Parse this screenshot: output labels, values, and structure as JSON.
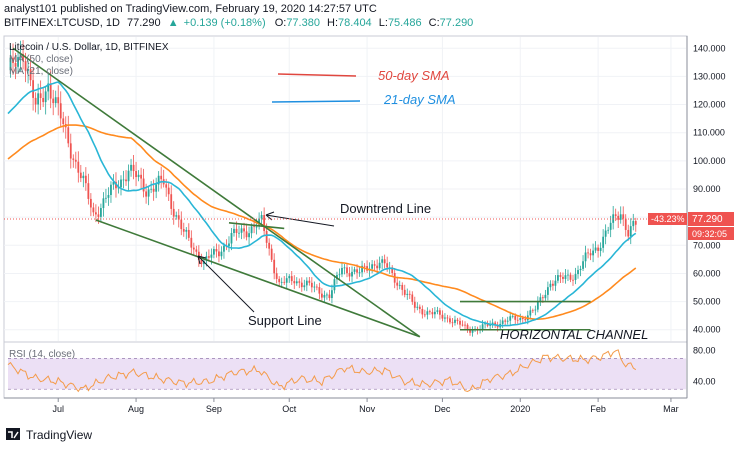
{
  "header": {
    "line1": "analyst101 published on TradingView.com, February 19, 2020 14:27:57 UTC",
    "symbol": "BITFINEX:LTCUSD, 1D",
    "last": "77.290",
    "change": "+0.139 (+0.18%)",
    "ohlc": {
      "O": "77.380",
      "H": "78.404",
      "L": "75.486",
      "C": "77.290"
    }
  },
  "pane_title": "Litecoin / U.S. Dollar, 1D, BITFINEX",
  "indicator_labels": [
    "MA (50, close)",
    "MA (21, close)"
  ],
  "rsi_label": "RSI (14, close)",
  "legend": [
    {
      "label": "50-day SMA",
      "color": "#e0473f"
    },
    {
      "label": "21-day SMA",
      "color": "#1f8fe0"
    }
  ],
  "annotations": {
    "downtrend": "Downtrend Line",
    "support": "Support Line",
    "channel": "HORIZONTAL CHANNEL"
  },
  "price_badges": {
    "pct": "-43.23%",
    "price": "77.290",
    "countdown": "09:32:05"
  },
  "footer": {
    "brand": "TradingView"
  },
  "chart_data": {
    "type": "line",
    "price_axis": {
      "min": 36,
      "max": 144,
      "ticks": [
        40,
        50,
        60,
        70,
        80,
        90,
        100,
        110,
        120,
        130,
        140
      ],
      "tick_labels": [
        "40.000",
        "50.000",
        "60.000",
        "70.000",
        "80.000",
        "90.000",
        "100.000",
        "110.000",
        "120.000",
        "130.000",
        "140.000"
      ]
    },
    "rsi_axis": {
      "min": 20,
      "max": 90,
      "ticks": [
        40,
        80
      ],
      "tick_labels": [
        "40.00",
        "80.00"
      ],
      "band": [
        30,
        70
      ]
    },
    "time_axis": {
      "labels": [
        "Jul",
        "Aug",
        "Sep",
        "Oct",
        "Nov",
        "Dec",
        "2020",
        "Feb",
        "Mar"
      ],
      "days": [
        20,
        51,
        82,
        112,
        143,
        173,
        204,
        235,
        264
      ]
    },
    "colors": {
      "up": "#26a69a",
      "down": "#ef5350",
      "sma50": "#ff8a1e",
      "sma21": "#29b6d6",
      "trend": "#3f7a3a",
      "rsi": "#f49b4a",
      "rsi_band": "#ece0f5"
    },
    "waypoints": [
      {
        "day": 0,
        "price": 130
      },
      {
        "day": 6,
        "price": 140
      },
      {
        "day": 11,
        "price": 118
      },
      {
        "day": 16,
        "price": 128
      },
      {
        "day": 22,
        "price": 112
      },
      {
        "day": 30,
        "price": 92
      },
      {
        "day": 34,
        "price": 81
      },
      {
        "day": 42,
        "price": 90
      },
      {
        "day": 48,
        "price": 97
      },
      {
        "day": 55,
        "price": 90
      },
      {
        "day": 62,
        "price": 92
      },
      {
        "day": 70,
        "price": 74
      },
      {
        "day": 78,
        "price": 64
      },
      {
        "day": 84,
        "price": 68
      },
      {
        "day": 89,
        "price": 73
      },
      {
        "day": 96,
        "price": 76
      },
      {
        "day": 101,
        "price": 78
      },
      {
        "day": 108,
        "price": 56
      },
      {
        "day": 114,
        "price": 58
      },
      {
        "day": 121,
        "price": 55
      },
      {
        "day": 128,
        "price": 52
      },
      {
        "day": 133,
        "price": 62
      },
      {
        "day": 140,
        "price": 60
      },
      {
        "day": 146,
        "price": 64
      },
      {
        "day": 150,
        "price": 63
      },
      {
        "day": 156,
        "price": 56
      },
      {
        "day": 162,
        "price": 48
      },
      {
        "day": 168,
        "price": 46
      },
      {
        "day": 176,
        "price": 44
      },
      {
        "day": 183,
        "price": 40
      },
      {
        "day": 190,
        "price": 41
      },
      {
        "day": 197,
        "price": 43
      },
      {
        "day": 204,
        "price": 44
      },
      {
        "day": 210,
        "price": 47
      },
      {
        "day": 216,
        "price": 57
      },
      {
        "day": 221,
        "price": 58
      },
      {
        "day": 226,
        "price": 60
      },
      {
        "day": 230,
        "price": 65
      },
      {
        "day": 235,
        "price": 70
      },
      {
        "day": 240,
        "price": 77
      },
      {
        "day": 244,
        "price": 82
      },
      {
        "day": 247,
        "price": 75
      },
      {
        "day": 250,
        "price": 77.3
      }
    ],
    "trend_lines": [
      {
        "name": "downtrend",
        "from": {
          "day": 2,
          "price": 140
        },
        "to": {
          "day": 164,
          "price": 37.5
        }
      },
      {
        "name": "support",
        "from": {
          "day": 35,
          "price": 79
        },
        "to": {
          "day": 164,
          "price": 37.5
        }
      },
      {
        "name": "upper-channel-top",
        "from": {
          "day": 88,
          "price": 78
        },
        "to": {
          "day": 110,
          "price": 76
        }
      },
      {
        "name": "channel-top",
        "from": {
          "day": 180,
          "price": 50
        },
        "to": {
          "day": 232,
          "price": 50
        }
      },
      {
        "name": "channel-bottom",
        "from": {
          "day": 180,
          "price": 40
        },
        "to": {
          "day": 232,
          "price": 40
        }
      }
    ],
    "rsi": [
      {
        "day": 0,
        "v": 62
      },
      {
        "day": 10,
        "v": 45
      },
      {
        "day": 20,
        "v": 40
      },
      {
        "day": 30,
        "v": 30
      },
      {
        "day": 40,
        "v": 45
      },
      {
        "day": 50,
        "v": 52
      },
      {
        "day": 60,
        "v": 44
      },
      {
        "day": 70,
        "v": 38
      },
      {
        "day": 80,
        "v": 40
      },
      {
        "day": 90,
        "v": 52
      },
      {
        "day": 100,
        "v": 55
      },
      {
        "day": 108,
        "v": 33
      },
      {
        "day": 116,
        "v": 44
      },
      {
        "day": 125,
        "v": 40
      },
      {
        "day": 134,
        "v": 58
      },
      {
        "day": 142,
        "v": 52
      },
      {
        "day": 150,
        "v": 55
      },
      {
        "day": 158,
        "v": 40
      },
      {
        "day": 166,
        "v": 36
      },
      {
        "day": 176,
        "v": 42
      },
      {
        "day": 184,
        "v": 28
      },
      {
        "day": 192,
        "v": 44
      },
      {
        "day": 200,
        "v": 50
      },
      {
        "day": 206,
        "v": 60
      },
      {
        "day": 214,
        "v": 72
      },
      {
        "day": 222,
        "v": 70
      },
      {
        "day": 230,
        "v": 68
      },
      {
        "day": 236,
        "v": 72
      },
      {
        "day": 242,
        "v": 80
      },
      {
        "day": 246,
        "v": 62
      },
      {
        "day": 250,
        "v": 58
      }
    ]
  }
}
